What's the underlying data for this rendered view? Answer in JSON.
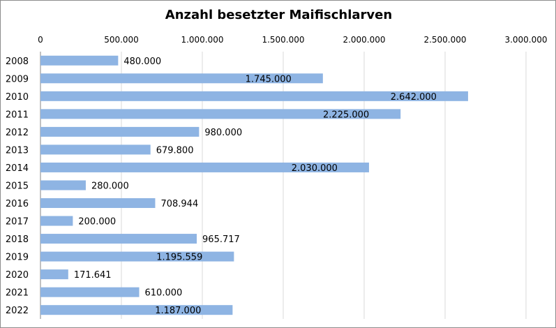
{
  "chart_data": {
    "type": "bar",
    "orientation": "horizontal",
    "title": "Anzahl besetzter Maifischlarven",
    "xlabel": "",
    "ylabel": "",
    "categories": [
      "2008",
      "2009",
      "2010",
      "2011",
      "2012",
      "2013",
      "2014",
      "2015",
      "2016",
      "2017",
      "2018",
      "2019",
      "2020",
      "2021",
      "2022"
    ],
    "values": [
      480000,
      1745000,
      2642000,
      2225000,
      980000,
      679800,
      2030000,
      280000,
      708944,
      200000,
      965717,
      1195559,
      171641,
      610000,
      1187000
    ],
    "data_labels": [
      "480.000",
      "1.745.000",
      "2.642.000",
      "2.225.000",
      "980.000",
      "679.800",
      "2.030.000",
      "280.000",
      "708.944",
      "200.000",
      "965.717",
      "1.195.559",
      "171.641",
      "610.000",
      "1.187.000"
    ],
    "xlim": [
      0,
      3000000
    ],
    "x_ticks": [
      0,
      500000,
      1000000,
      1500000,
      2000000,
      2500000,
      3000000
    ],
    "x_tick_labels": [
      "0",
      "500.000",
      "1.000.000",
      "1.500.000",
      "2.000.000",
      "2.500.000",
      "3.000.000"
    ],
    "x_axis_position": "top",
    "grid": true,
    "bar_color": "#8eb4e3",
    "grid_color": "#d9d9d9",
    "legend": "none"
  }
}
